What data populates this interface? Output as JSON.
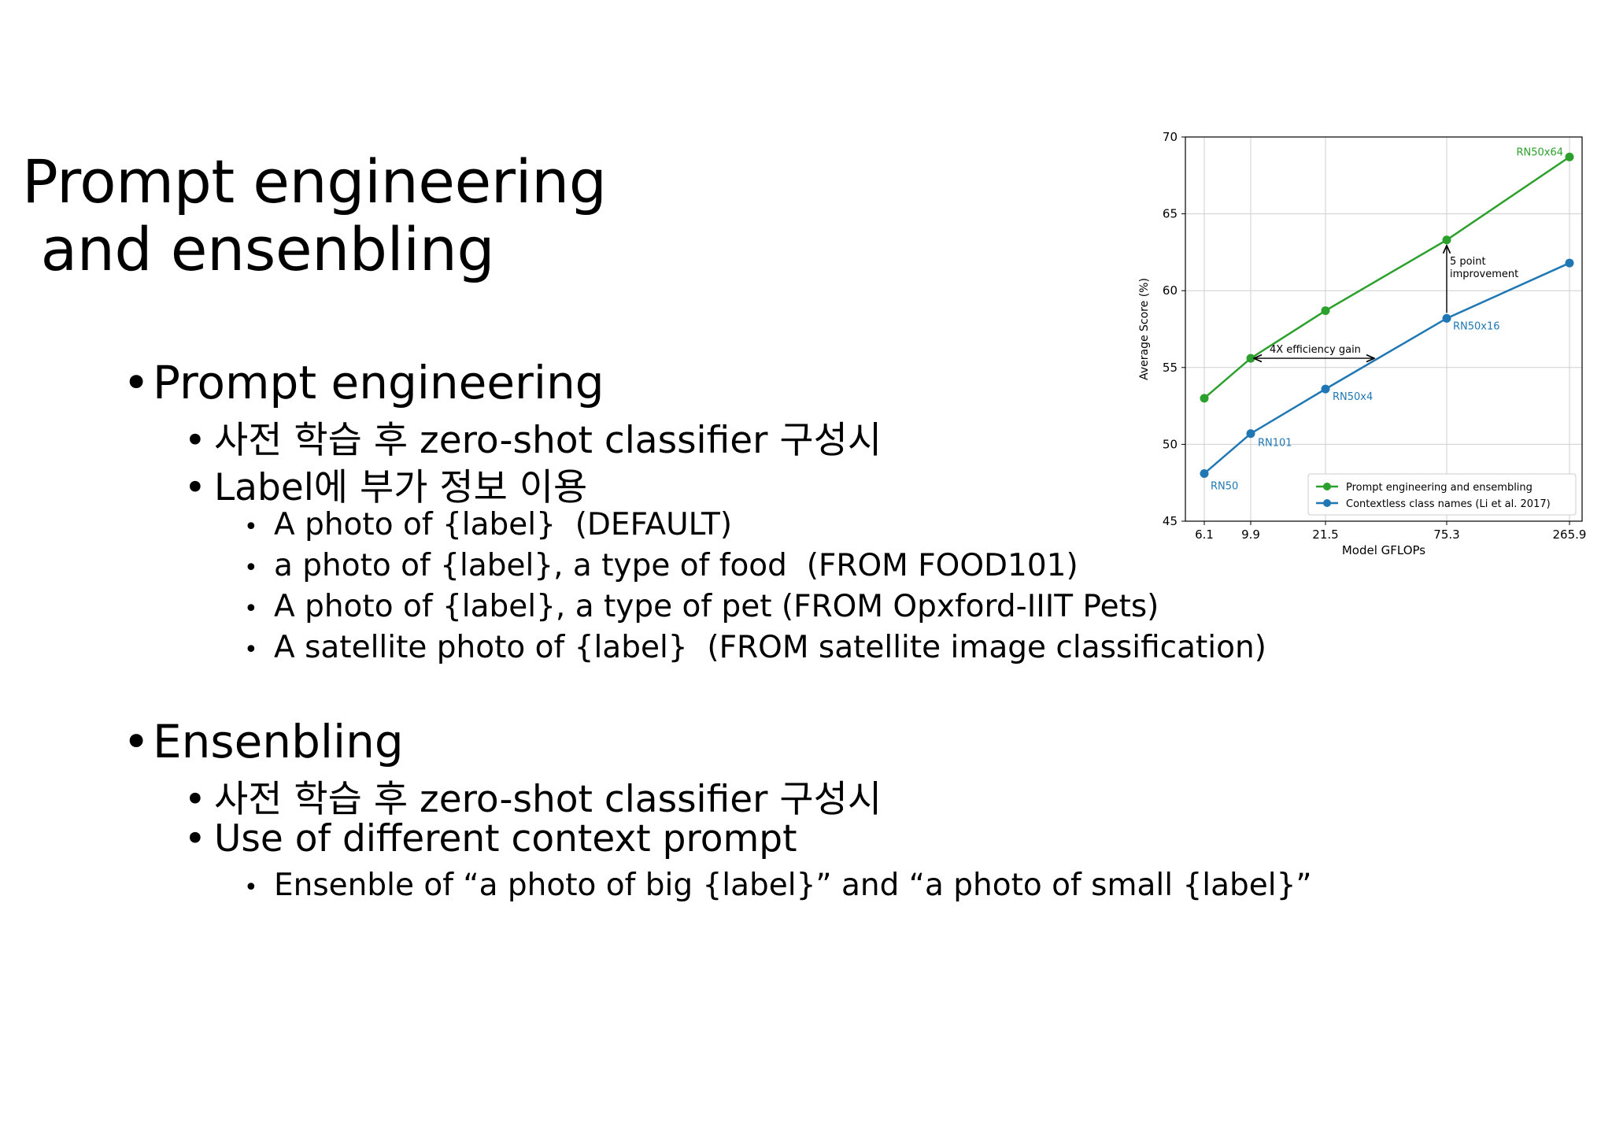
{
  "slide": {
    "title_line1": "Prompt engineering",
    "title_line2": " and ensenbling",
    "bullet_char": "•",
    "sections": [
      {
        "heading": "Prompt engineering",
        "items": [
          {
            "text": "사전 학습 후 zero-shot classifier 구성시"
          },
          {
            "text": "Label에 부가 정보 이용",
            "sub": [
              "A photo of {label}  (DEFAULT)",
              "a photo of {label}, a type of food  (FROM FOOD101)",
              "A photo of {label}, a type of pet (FROM Opxford-IIIT Pets)",
              "A satellite photo of {label}  (FROM satellite image classification)"
            ]
          }
        ]
      },
      {
        "heading": "Ensenbling",
        "items": [
          {
            "text": "사전 학습 후 zero-shot classifier 구성시"
          },
          {
            "text": "Use of different context prompt",
            "sub": [
              "Ensenble of “a photo of big {label}” and “a photo of small {label}”"
            ]
          }
        ]
      }
    ]
  },
  "chart_data": {
    "type": "line",
    "xlabel": "Model GFLOPs",
    "ylabel": "Average Score (%)",
    "x_ticks": [
      "6.1",
      "9.9",
      "21.5",
      "75.3",
      "265.9"
    ],
    "x": [
      6.1,
      9.9,
      21.5,
      75.3,
      265.9
    ],
    "x_scale": "log",
    "ylim": [
      45,
      70
    ],
    "y_ticks": [
      45,
      50,
      55,
      60,
      65,
      70
    ],
    "grid": true,
    "legend_position": "lower-right",
    "series": [
      {
        "name": "Prompt engineering and ensembling",
        "color": "#2ca02c",
        "values": [
          53.0,
          55.6,
          58.7,
          63.3,
          68.7
        ]
      },
      {
        "name": "Contextless class names (Li et al. 2017)",
        "color": "#1f77b4",
        "values": [
          48.1,
          50.7,
          53.6,
          58.2,
          61.8
        ]
      }
    ],
    "point_labels": [
      {
        "series": 1,
        "index": 0,
        "text": "RN50"
      },
      {
        "series": 1,
        "index": 1,
        "text": "RN101"
      },
      {
        "series": 1,
        "index": 2,
        "text": "RN50x4"
      },
      {
        "series": 1,
        "index": 3,
        "text": "RN50x16"
      },
      {
        "series": 0,
        "index": 4,
        "text": "RN50x64"
      }
    ],
    "annotations": [
      {
        "text": "4X efficiency gain",
        "from": {
          "x": 9.9,
          "y": 55.6
        },
        "to": {
          "x": 21.5,
          "y": 55.6
        }
      },
      {
        "text": "5 point\nimprovement",
        "from": {
          "x": 75.3,
          "y": 58.2
        },
        "to": {
          "x": 75.3,
          "y": 63.3
        }
      }
    ]
  }
}
